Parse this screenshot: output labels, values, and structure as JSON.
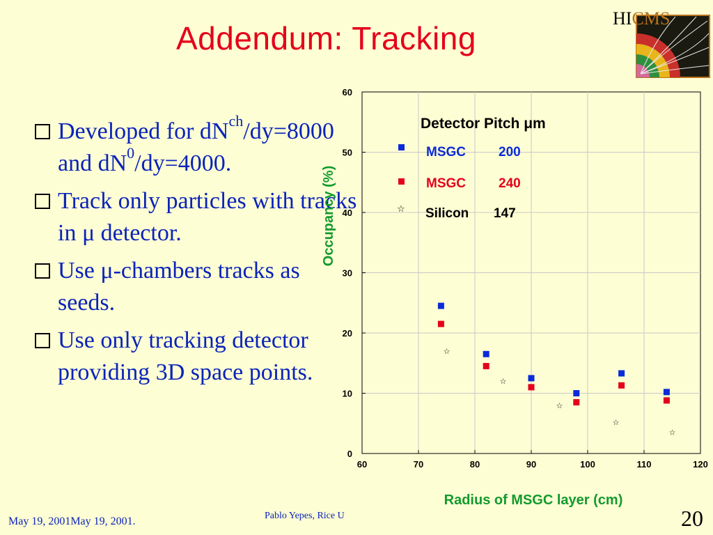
{
  "slide": {
    "title": "Addendum: Tracking",
    "logo": {
      "hi": "HI",
      "cms": "CMS"
    },
    "bullets": [
      {
        "parts": [
          "Developed for dN",
          "ch",
          "/dy=8000 and dN",
          "0",
          "/dy=4000."
        ]
      },
      {
        "text": "Track only particles with tracks in μ detector."
      },
      {
        "text": "Use μ-chambers tracks as seeds."
      },
      {
        "text": "Use only tracking detector providing 3D space points."
      }
    ],
    "footer_left": "May 19, 2001May 19, 2001.",
    "footer_mid": "Pablo Yepes, Rice U",
    "page_number": "20"
  },
  "chart_data": {
    "type": "scatter",
    "xlabel": "Radius of MSGC layer (cm)",
    "ylabel": "Occupancy (%)",
    "xlim": [
      60,
      120
    ],
    "ylim": [
      0,
      60
    ],
    "xticks": [
      60,
      70,
      80,
      90,
      100,
      110,
      120
    ],
    "yticks": [
      0,
      10,
      20,
      30,
      40,
      50,
      60
    ],
    "grid": true,
    "legend_title": "Detector Pitch μm",
    "legend_placement": "top-left",
    "colors": {
      "axis_label": "#139a2e",
      "msgc200": "#0a2bd8",
      "msgc240": "#e4001b",
      "silicon": "#000000"
    },
    "series": [
      {
        "name": "MSGC",
        "pitch": "200",
        "marker": "square",
        "color": "#0a2bd8",
        "x": [
          74,
          82,
          90,
          98,
          106,
          114
        ],
        "y": [
          24.5,
          16.5,
          12.5,
          10.0,
          13.3,
          10.2
        ]
      },
      {
        "name": "MSGC",
        "pitch": "240",
        "marker": "square",
        "color": "#e4001b",
        "x": [
          74,
          82,
          90,
          98,
          106,
          114
        ],
        "y": [
          21.5,
          14.5,
          11.0,
          8.5,
          11.3,
          8.8
        ]
      },
      {
        "name": "Silicon",
        "pitch": "147",
        "marker": "star",
        "color": "#000000",
        "x": [
          75,
          85,
          95,
          105,
          115
        ],
        "y": [
          17.0,
          12.0,
          8.0,
          5.2,
          3.5
        ]
      }
    ]
  }
}
